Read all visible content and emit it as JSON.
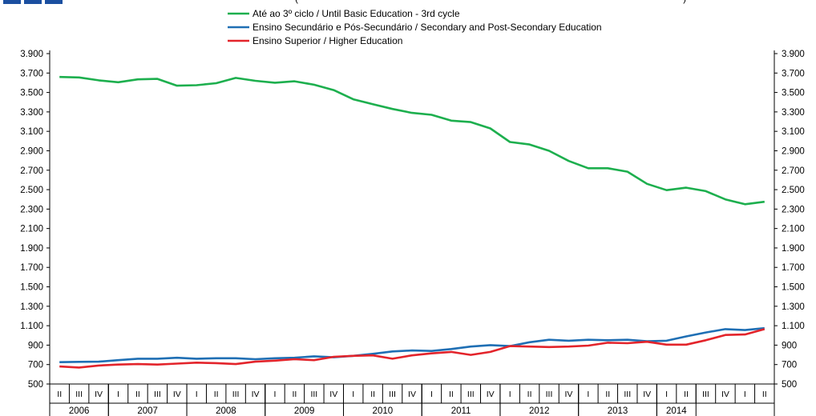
{
  "colors": {
    "green": "#1daf4e",
    "blue": "#1f6fb4",
    "red": "#e3242b",
    "logo": "#1b4fa0"
  },
  "header_fragment": "(                                                                                                                                                )",
  "chart_data": {
    "type": "line",
    "title": "",
    "xlabel": "",
    "ylabel": "",
    "ylim": [
      500,
      3900
    ],
    "y_ticks": [
      "3.900",
      "3.700",
      "3.500",
      "3.300",
      "3.100",
      "2.900",
      "2.700",
      "2.500",
      "2.300",
      "2.100",
      "1.900",
      "1.700",
      "1.500",
      "1.300",
      "1.100",
      "900",
      "700",
      "500"
    ],
    "y_tick_values": [
      3900,
      3700,
      3500,
      3300,
      3100,
      2900,
      2700,
      2500,
      2300,
      2100,
      1900,
      1700,
      1500,
      1300,
      1100,
      900,
      700,
      500
    ],
    "quarter_labels": [
      "II",
      "III",
      "IV",
      "I",
      "II",
      "III",
      "IV",
      "I",
      "II",
      "III",
      "IV",
      "I",
      "II",
      "III",
      "IV",
      "I",
      "II",
      "III",
      "IV",
      "I",
      "II",
      "III",
      "IV",
      "I",
      "II",
      "III",
      "IV",
      "I",
      "II",
      "III",
      "IV",
      "I",
      "II",
      "III",
      "IV",
      "I",
      "II"
    ],
    "years": [
      {
        "label": "2006",
        "start": 0,
        "end": 3
      },
      {
        "label": "2007",
        "start": 3,
        "end": 7
      },
      {
        "label": "2008",
        "start": 7,
        "end": 11
      },
      {
        "label": "2009",
        "start": 11,
        "end": 15
      },
      {
        "label": "2010",
        "start": 15,
        "end": 19
      },
      {
        "label": "2011",
        "start": 19,
        "end": 23
      },
      {
        "label": "2012",
        "start": 23,
        "end": 27
      },
      {
        "label": "2013",
        "start": 27,
        "end": 31
      },
      {
        "label": "2014",
        "start": 31,
        "end": 33
      }
    ],
    "legend_position": "top-center",
    "grid": false,
    "series": [
      {
        "name": "Até ao 3º ciclo / Until Basic Education - 3rd cycle",
        "color": "#1daf4e",
        "values": [
          3660,
          3655,
          3625,
          3605,
          3635,
          3640,
          3570,
          3575,
          3595,
          3650,
          3620,
          3600,
          3615,
          3580,
          3525,
          3430,
          3380,
          3330,
          3290,
          3270,
          3210,
          3195,
          3130,
          2990,
          2965,
          2900,
          2795,
          2720,
          2720,
          2685,
          2560,
          2495,
          2520,
          2485,
          2400,
          2350,
          2375
        ]
      },
      {
        "name": "Ensino Secundário e Pós-Secundário / Secondary and Post-Secondary Education",
        "color": "#1f6fb4",
        "values": [
          725,
          728,
          730,
          745,
          760,
          760,
          770,
          760,
          765,
          765,
          755,
          765,
          770,
          785,
          775,
          790,
          810,
          835,
          845,
          840,
          860,
          885,
          900,
          890,
          930,
          955,
          945,
          955,
          950,
          955,
          940,
          945,
          990,
          1030,
          1065,
          1055,
          1075
        ]
      },
      {
        "name": "Ensino Superior / Higher Education",
        "color": "#e3242b",
        "values": [
          680,
          670,
          690,
          700,
          705,
          700,
          710,
          720,
          715,
          705,
          730,
          740,
          755,
          745,
          780,
          790,
          795,
          760,
          795,
          815,
          830,
          800,
          830,
          890,
          885,
          880,
          885,
          895,
          925,
          920,
          935,
          905,
          905,
          950,
          1005,
          1010,
          1065
        ]
      }
    ]
  }
}
